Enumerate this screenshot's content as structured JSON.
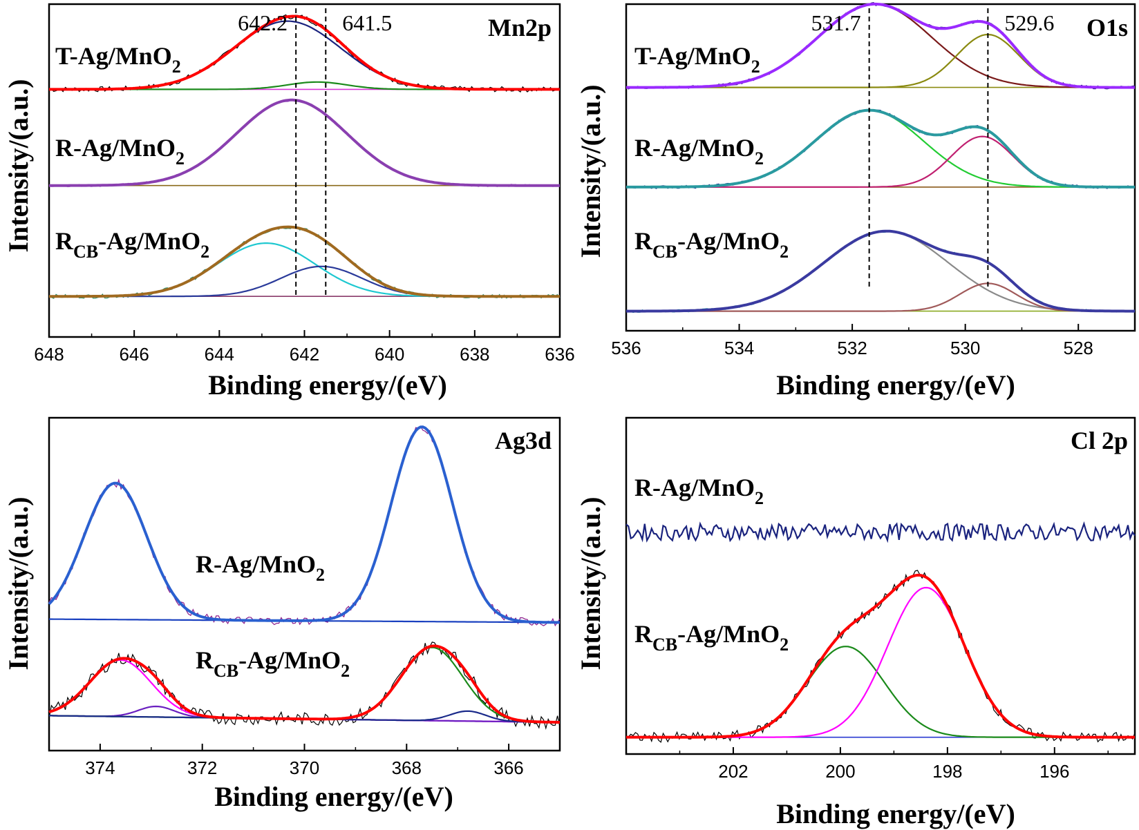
{
  "chart_data": [
    {
      "id": "mn2p",
      "type": "line",
      "title": "Mn2p",
      "xlabel": "Binding energy/(eV)",
      "ylabel": "Intensity/(a.u.)",
      "xlim": [
        648,
        636
      ],
      "xticks": [
        "648",
        "646",
        "644",
        "642",
        "640",
        "638",
        "636"
      ],
      "ylim": [
        0,
        1
      ],
      "annotations": [
        {
          "x": 642.2,
          "label": "642.2"
        },
        {
          "x": 641.5,
          "label": "641.5"
        }
      ],
      "spectra": [
        {
          "label": "T-Ag/MnO",
          "sub": "2",
          "pre": "",
          "baseline": 0.744,
          "noise": 0.008,
          "peaks": [
            {
              "c": 642.4,
              "a": 0.205,
              "w": 1.25,
              "color": "#1a237e"
            },
            {
              "c": 641.7,
              "a": 0.022,
              "w": 0.7,
              "color": "#1b8a1b"
            }
          ],
          "bg": {
            "left": 0.744,
            "right": 0.744,
            "color": "#d633d6"
          },
          "envColor": "#ff0000",
          "rawColor": "#000000"
        },
        {
          "label": "R-Ag/MnO",
          "sub": "2",
          "pre": "",
          "baseline": 0.455,
          "noise": 0.004,
          "peaks": [
            {
              "c": 642.3,
              "a": 0.257,
              "w": 1.3,
              "color": "#7b3fa0"
            }
          ],
          "bg": {
            "left": 0.455,
            "right": 0.455,
            "color": "#8a6a1a"
          },
          "envColor": "#8a3fb0",
          "rawColor": "#b35cd6"
        },
        {
          "label": "R",
          "sub": "CB",
          "pre": "",
          "post": "-Ag/MnO",
          "sub2": "2",
          "baseline": 0.122,
          "noise": 0.006,
          "peaks": [
            {
              "c": 642.9,
              "a": 0.16,
              "w": 1.15,
              "color": "#1ec8d0"
            },
            {
              "c": 641.6,
              "a": 0.09,
              "w": 0.95,
              "color": "#2a3a9a"
            }
          ],
          "bg": {
            "left": 0.122,
            "right": 0.122,
            "color": "#8a3a6a"
          },
          "envColor": "#a06a20",
          "rawColor": "#2a8a6a"
        }
      ]
    },
    {
      "id": "o1s",
      "type": "line",
      "title": "O1s",
      "xlabel": "Binding energy/(eV)",
      "ylabel": "Intensity/(a.u.)",
      "xlim": [
        536,
        527
      ],
      "xticks": [
        "536",
        "534",
        "532",
        "530",
        "528"
      ],
      "ylim": [
        0,
        1
      ],
      "annotations": [
        {
          "x": 531.7,
          "label": "531.7"
        },
        {
          "x": 529.6,
          "label": "529.6"
        }
      ],
      "spectra": [
        {
          "label": "T-Ag/MnO",
          "sub": "2",
          "baseline": 0.745,
          "noise": 0.005,
          "peaks": [
            {
              "c": 531.6,
              "a": 0.255,
              "w": 1.0,
              "color": "#7a1a1a"
            },
            {
              "c": 529.6,
              "a": 0.162,
              "w": 0.55,
              "color": "#8a8a10"
            }
          ],
          "bg": {
            "left": 0.745,
            "right": 0.745,
            "color": "#8a8a10"
          },
          "envColor": "#9a2aff",
          "rawColor": "#1a1a6a"
        },
        {
          "label": "R-Ag/MnO",
          "sub": "2",
          "baseline": 0.44,
          "noise": 0.005,
          "peaks": [
            {
              "c": 531.7,
              "a": 0.235,
              "w": 0.95,
              "color": "#22cc33"
            },
            {
              "c": 529.7,
              "a": 0.155,
              "w": 0.55,
              "color": "#c02070"
            }
          ],
          "bg": {
            "left": 0.44,
            "right": 0.44,
            "color": "#8a5a1a"
          },
          "envColor": "#2a9aa0",
          "rawColor": "#1a2a8a"
        },
        {
          "label": "R",
          "sub": "CB",
          "post": "-Ag/MnO",
          "sub2": "2",
          "baseline": 0.06,
          "noise": 0.004,
          "peaks": [
            {
              "c": 531.4,
              "a": 0.245,
              "w": 1.1,
              "color": "#8a8a8a"
            },
            {
              "c": 529.6,
              "a": 0.085,
              "w": 0.5,
              "color": "#a05a5a"
            }
          ],
          "bg": {
            "left": 0.06,
            "right": 0.06,
            "color": "#8aaa20"
          },
          "envColor": "#3a3aa0",
          "rawColor": "#20a0a0"
        }
      ]
    },
    {
      "id": "ag3d",
      "type": "line",
      "title": "Ag3d",
      "xlabel": "Binding energy/(eV)",
      "ylabel": "Intensity/(a.u.)",
      "xlim": [
        375,
        365
      ],
      "xticks": [
        "374",
        "372",
        "370",
        "368",
        "366"
      ],
      "ylim": [
        0,
        1
      ],
      "annotations": [],
      "spectra": [
        {
          "label": "R-Ag/MnO",
          "sub": "2",
          "baseline": 0.39,
          "noise": 0.012,
          "peaks": [
            {
              "c": 373.7,
              "a": 0.41,
              "w": 0.62,
              "color": "#1a40c0"
            },
            {
              "c": 367.7,
              "a": 0.585,
              "w": 0.6,
              "color": "#1a40c0"
            }
          ],
          "bg": {
            "left": 0.395,
            "right": 0.385,
            "color": "#1a8a8a"
          },
          "envColor": "#2a60d0",
          "rawColor": "#8a1a8a"
        },
        {
          "label": "R",
          "sub": "CB",
          "post": "-Ag/MnO",
          "sub2": "2",
          "baseline": 0.1,
          "noise": 0.02,
          "peaks": [
            {
              "c": 373.6,
              "a": 0.17,
              "w": 0.6,
              "color": "#ff00ff"
            },
            {
              "c": 372.9,
              "a": 0.032,
              "w": 0.35,
              "color": "#6a20c0"
            },
            {
              "c": 367.5,
              "a": 0.22,
              "w": 0.6,
              "color": "#1a8a1a"
            },
            {
              "c": 366.8,
              "a": 0.03,
              "w": 0.35,
              "color": "#1a2a8a"
            }
          ],
          "bg": {
            "left": 0.105,
            "right": 0.085,
            "color": "#9a20ff"
          },
          "envColor": "#ff0000",
          "rawColor": "#000000"
        }
      ]
    },
    {
      "id": "cl2p",
      "type": "line",
      "title": "Cl 2p",
      "xlabel": "Binding energy/(eV)",
      "ylabel": "Intensity/(a.u.)",
      "xlim": [
        204,
        194.5
      ],
      "xticks": [
        "202",
        "200",
        "198",
        "196"
      ],
      "ylim": [
        0,
        1
      ],
      "annotations": [],
      "spectra": [
        {
          "label": "R-Ag/MnO",
          "sub": "2",
          "baseline": 0.66,
          "noise": 0.025,
          "peaks": [],
          "bg": null,
          "envColor": "#1a237e",
          "rawColor": "#1a237e",
          "noiseOnly": true
        },
        {
          "label": "R",
          "sub": "CB",
          "post": "-Ag/MnO",
          "sub2": "2",
          "baseline": 0.05,
          "noise": 0.015,
          "peaks": [
            {
              "c": 199.9,
              "a": 0.27,
              "w": 0.72,
              "color": "#1a8a1a"
            },
            {
              "c": 198.4,
              "a": 0.445,
              "w": 0.72,
              "color": "#ff00ff"
            }
          ],
          "bg": {
            "left": 0.05,
            "right": 0.05,
            "color": "#2a3ad0"
          },
          "envColor": "#ff0000",
          "rawColor": "#000000"
        }
      ]
    }
  ]
}
